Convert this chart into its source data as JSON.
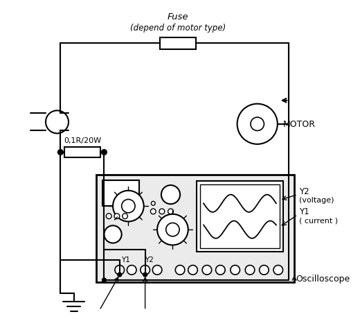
{
  "bg_color": "#ffffff",
  "line_color": "#000000",
  "fuse_text_1": "Fuse",
  "fuse_text_2": "(depend of motor type)",
  "resistor_label": "0,1R/20W",
  "motor_label": "MOTOR",
  "oscilloscope_label": "Oscilloscope",
  "y1_label": "Y1",
  "y2_label": "Y2",
  "y2_voltage_label_1": "Y2",
  "y2_voltage_label_2": "(voltage)",
  "y1_current_label_1": "Y1",
  "y1_current_label_2": "( current )"
}
